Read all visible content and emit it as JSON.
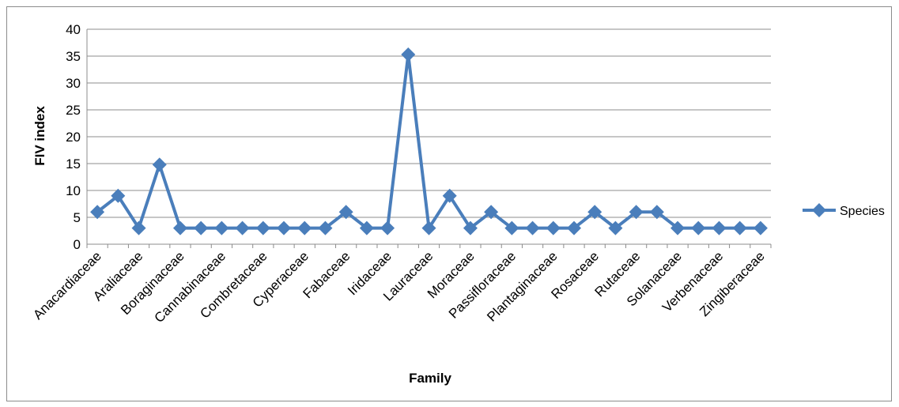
{
  "chart_data": {
    "type": "line",
    "categories": [
      "Anacardiaceae",
      "",
      "Araliaceae",
      "",
      "Boraginaceae",
      "",
      "Cannabinaceae",
      "",
      "Combretaceae",
      "",
      "Cyperaceae",
      "",
      "Fabaceae",
      "",
      "Iridaceae",
      "",
      "Lauraceae",
      "",
      "Moraceae",
      "",
      "Passifloraceae",
      "",
      "Plantaginaceae",
      "",
      "Rosaceae",
      "",
      "Rutaceae",
      "",
      "Solanaceae",
      "",
      "Verbenaceae",
      "",
      "Zingiberaceae"
    ],
    "series": [
      {
        "name": "Species",
        "color": "#4a7ebb",
        "values": [
          6,
          9,
          3,
          14.8,
          3,
          3,
          3,
          3,
          3,
          3,
          3,
          3,
          6,
          3,
          3,
          35.3,
          3,
          9,
          3,
          6,
          3,
          3,
          3,
          3,
          6,
          3,
          6,
          6,
          3,
          3,
          3,
          3,
          3
        ]
      }
    ],
    "xlabel": "Family",
    "ylabel": "FIV index",
    "ylim": [
      0,
      40
    ],
    "yticks": [
      "0",
      "5",
      "10",
      "15",
      "20",
      "25",
      "30",
      "35",
      "40"
    ],
    "grid": true,
    "legend_position": "right"
  }
}
